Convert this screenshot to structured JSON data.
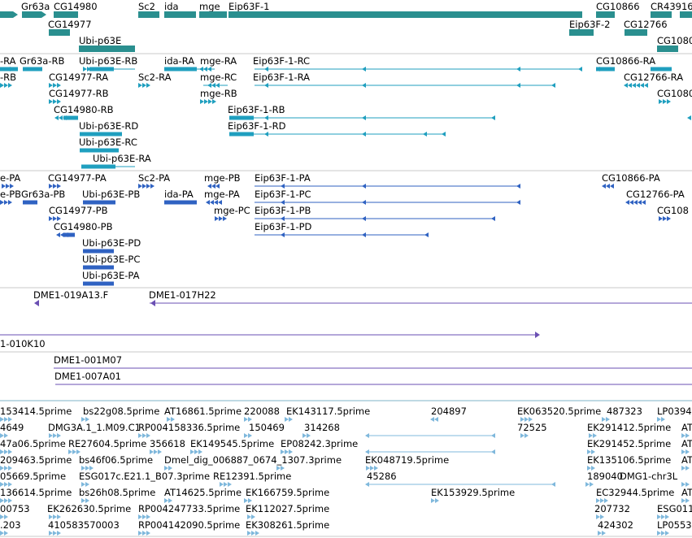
{
  "colors": {
    "gene": "#2a8f8f",
    "transcript": "#1f9fbf",
    "protein": "#2f62c2",
    "clone": "#6a4fb3",
    "est": "#7fb8dc",
    "divider": "#c8c8c8",
    "divider_strong": "#7fb3c7"
  },
  "tracks": {
    "genes": {
      "labels": [
        "Gr63a",
        "CG14980",
        "Sc2",
        "ida",
        "mge",
        "Eip63F-1",
        "CG10866",
        "CR43916",
        "CG14977",
        "Eip63F-2",
        "CG12766",
        "Ubi-p63E",
        "CG1080"
      ]
    },
    "transcripts": {
      "labels": [
        "-RA",
        "Gr63a-RB",
        "Ubi-p63E-RB",
        "ida-RA",
        "mge-RA",
        "Eip63F-1-RC",
        "CG10866-RA",
        "-RB",
        "CG14977-RA",
        "Sc2-RA",
        "mge-RC",
        "Eip63F-1-RA",
        "CG12766-RA",
        "CG14977-RB",
        "mge-RB",
        "CG1080",
        "CG14980-RB",
        "Eip63F-1-RB",
        "Ubi-p63E-RD",
        "Eip63F-1-RD",
        "Ubi-p63E-RC",
        "Ubi-p63E-RA"
      ]
    },
    "proteins": {
      "labels": [
        "e-PA",
        "CG14977-PA",
        "Sc2-PA",
        "mge-PB",
        "Eip63F-1-PA",
        "CG10866-PA",
        "e-PB",
        "Gr63a-PB",
        "Ubi-p63E-PB",
        "ida-PA",
        "mge-PA",
        "Eip63F-1-PC",
        "CG12766-PA",
        "CG14977-PB",
        "mge-PC",
        "Eip63F-1-PB",
        "CG108",
        "CG14980-PB",
        "Eip63F-1-PD",
        "Ubi-p63E-PD",
        "Ubi-p63E-PC",
        "Ubi-p63E-PA"
      ]
    },
    "clones": {
      "labels": [
        "DME1-019A13.F",
        "DME1-017H22",
        "1-010K10",
        "DME1-001M07",
        "DME1-007A01"
      ]
    },
    "ests": {
      "labels": [
        "153414.5prime",
        "bs22g08.5prime",
        "AT16861.5prime",
        "220088",
        "EK143117.5prime",
        "204897",
        "EK063520.5prime",
        "487323",
        "LP0394",
        "4649",
        "DMG3A.1_1.M09.C1",
        "RP004158336.5prime",
        "150469",
        "314268",
        "72525",
        "EK291412.5prime",
        "AT",
        "47a06.5prime",
        "RE27604.5prime",
        "356618",
        "EK149545.5prime",
        "EP08242.3prime",
        "EK291452.5prime",
        "AT",
        "209463.5prime",
        "bs46f06.5prime",
        "Dmel_dig_006887_0674_1307.3prime",
        "EK048719.5prime",
        "EK135106.5prime",
        "AT",
        "05669.5prime",
        "ESG017c.E21.1_B07.3prime",
        "RE12391.5prime",
        "45286",
        "189040",
        "DMG1-chr3L",
        "136614.5prime",
        "bs26h08.5prime",
        "AT14625.5prime",
        "EK166759.5prime",
        "EK153929.5prime",
        "EC32944.5prime",
        "AT",
        "00753",
        "EK262630.5prime",
        "RP004247733.5prime",
        "EK112027.5prime",
        "207732",
        "ESG011",
        ".203",
        "410583570003",
        "RP004142090.5prime",
        "EK308261.5prime",
        "424302",
        "LP0553"
      ]
    }
  }
}
